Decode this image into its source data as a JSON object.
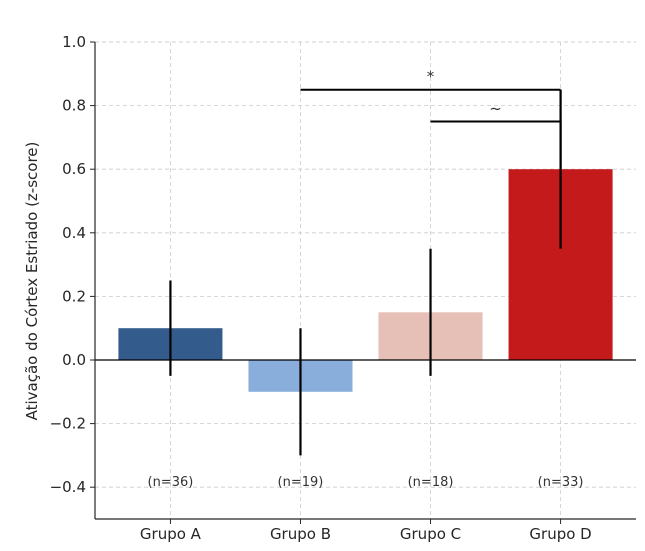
{
  "chart_data": {
    "type": "bar",
    "title": "",
    "xlabel": "",
    "ylabel": "Ativação do Córtex Estriado (z-score)",
    "ylim": [
      -0.5,
      1.0
    ],
    "yticks": [
      -0.4,
      -0.2,
      0.0,
      0.2,
      0.4,
      0.6,
      0.8,
      1.0
    ],
    "ytick_labels": [
      "−0.4",
      "−0.2",
      "0.0",
      "0.2",
      "0.4",
      "0.6",
      "0.8",
      "1.0"
    ],
    "grid": true,
    "categories": [
      "Grupo A",
      "Grupo B",
      "Grupo C",
      "Grupo D"
    ],
    "values": [
      0.1,
      -0.1,
      0.15,
      0.6
    ],
    "errors": [
      0.15,
      0.2,
      0.2,
      0.25
    ],
    "colors": [
      "#335c8c",
      "#8aaedc",
      "#e6bfb6",
      "#c41a1c"
    ],
    "sample_sizes": [
      "(n=36)",
      "(n=19)",
      "(n=18)",
      "(n=33)"
    ],
    "sample_label_y": -0.38,
    "significance": [
      {
        "from": "Grupo B",
        "to": "Grupo D",
        "y": 0.85,
        "label": "*"
      },
      {
        "from": "Grupo C",
        "to": "Grupo D",
        "y": 0.75,
        "label": "~"
      }
    ]
  }
}
